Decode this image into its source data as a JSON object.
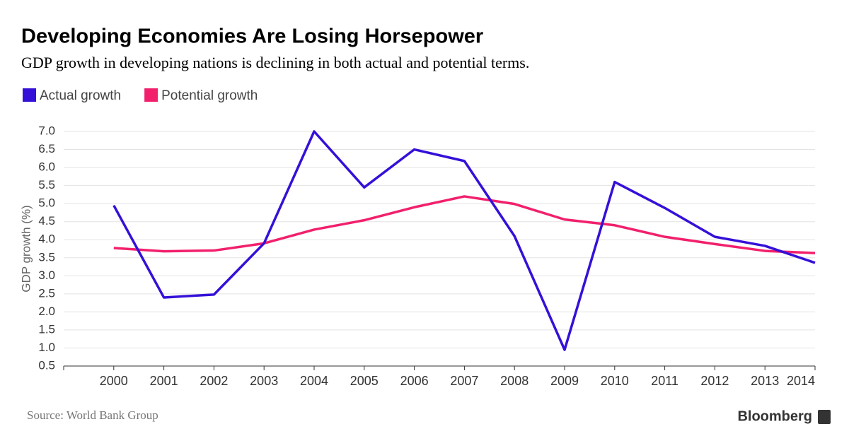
{
  "chart_data": {
    "type": "line",
    "title": "Developing Economies Are Losing Horsepower",
    "subtitle": "GDP growth in developing nations is declining in both actual and potential terms.",
    "y_label": "GDP growth (%)",
    "source": "Source: World Bank Group",
    "brand": "Bloomberg",
    "legend": "top-left",
    "grid": true,
    "x": [
      2000,
      2001,
      2002,
      2003,
      2004,
      2005,
      2006,
      2007,
      2008,
      2009,
      2010,
      2011,
      2012,
      2013,
      2014
    ],
    "xlim": [
      1999,
      2014
    ],
    "xticks": [
      2000,
      2001,
      2002,
      2003,
      2004,
      2005,
      2006,
      2007,
      2008,
      2009,
      2010,
      2011,
      2012,
      2013,
      2014
    ],
    "ylim": [
      0.5,
      7
    ],
    "yticks": [
      0.5,
      {
        "value": 1,
        "label": "1.0"
      },
      1.5,
      {
        "value": 2,
        "label": "2.0"
      },
      2.5,
      {
        "value": 3,
        "label": "3.0"
      },
      3.5,
      {
        "value": 4,
        "label": "4.0"
      },
      4.5,
      {
        "value": 5,
        "label": "5.0"
      },
      5.5,
      {
        "value": 6,
        "label": "6.0"
      },
      6.5,
      {
        "value": 7,
        "label": "7.0"
      }
    ],
    "series": [
      {
        "name": "Actual growth",
        "color": "#3510d8",
        "values": [
          4.95,
          2.4,
          2.48,
          3.9,
          7.0,
          5.45,
          6.5,
          6.18,
          4.1,
          0.95,
          5.6,
          4.88,
          4.08,
          3.83,
          3.36
        ]
      },
      {
        "name": "Potential growth",
        "color": "#f2206c",
        "values": [
          3.77,
          3.68,
          3.7,
          3.9,
          4.28,
          4.54,
          4.9,
          5.2,
          4.99,
          4.56,
          4.4,
          4.08,
          3.88,
          3.69,
          3.63
        ]
      }
    ]
  }
}
